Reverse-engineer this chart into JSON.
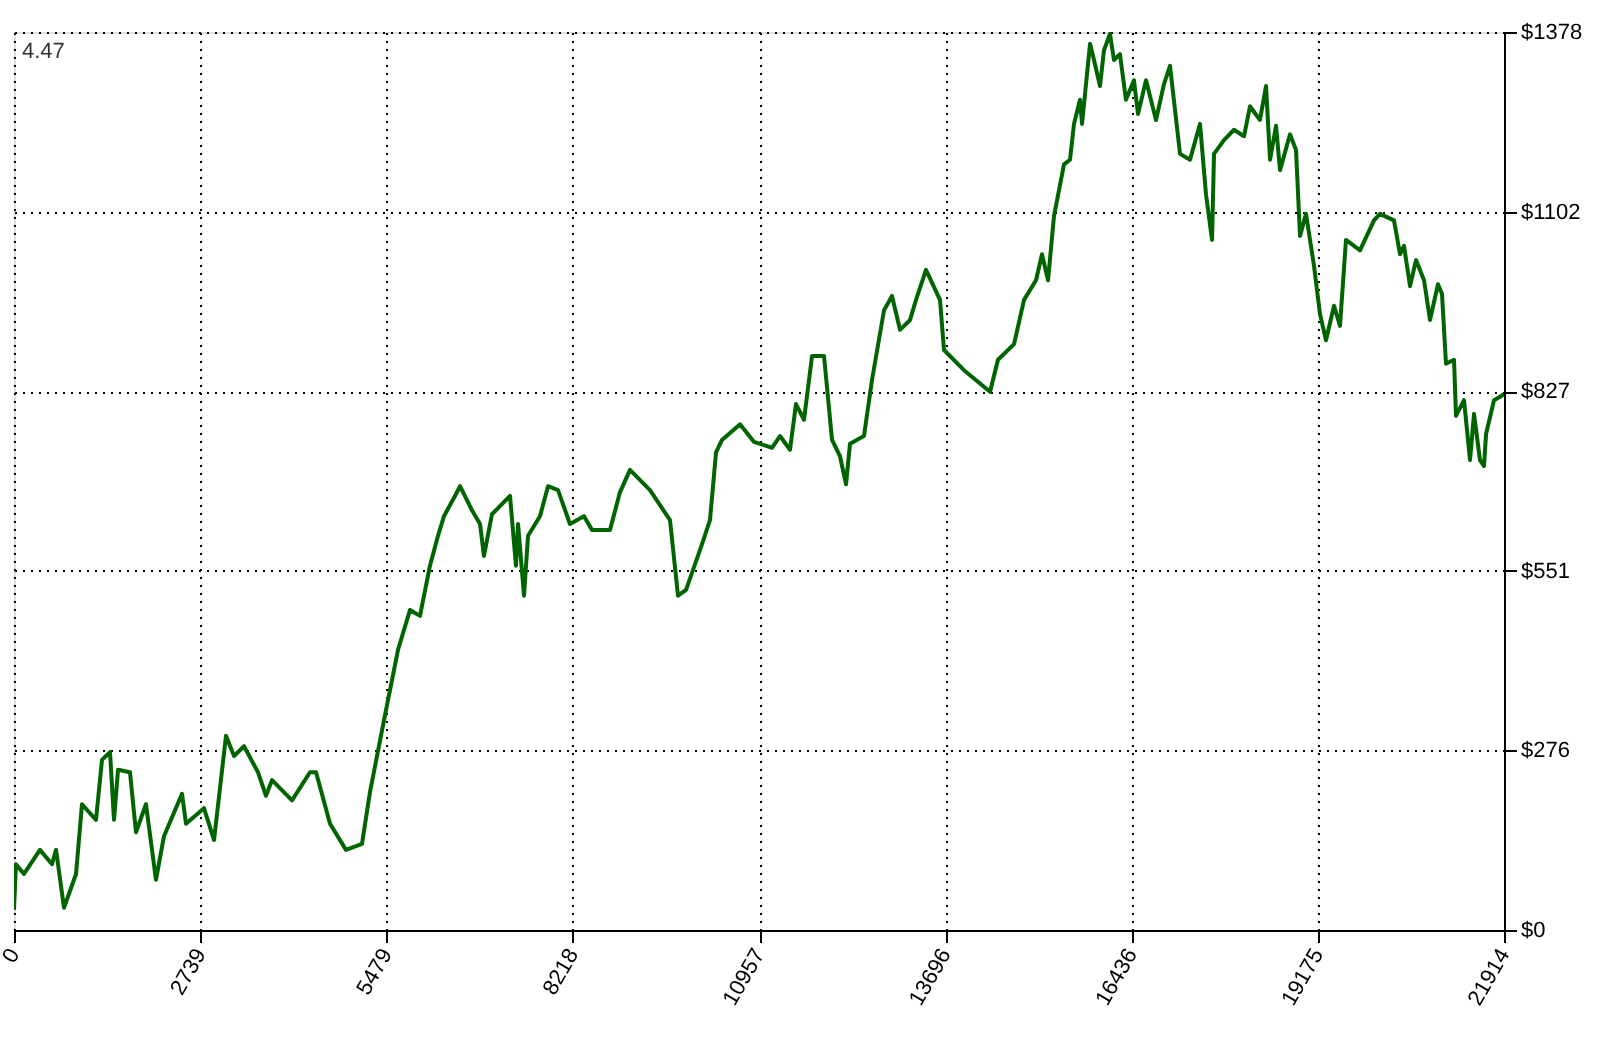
{
  "chart_data": {
    "type": "line",
    "x": [
      0,
      29,
      147,
      382,
      559,
      618,
      735,
      912,
      1000,
      1206,
      1294,
      1412,
      1471,
      1530,
      1706,
      1794,
      1941,
      2088,
      2206,
      2471,
      2530,
      2794,
      2942,
      3118,
      3236,
      3383,
      3589,
      3706,
      3795,
      4089,
      4353,
      4442,
      4648,
      4883,
      5118,
      5236,
      5442,
      5648,
      5824,
      5971,
      6118,
      6236,
      6324,
      6501,
      6560,
      6736,
      6854,
      6912,
      7030,
      7295,
      7383,
      7413,
      7501,
      7560,
      7736,
      7854,
      8001,
      8177,
      8383,
      8501,
      8766,
      8913,
      9060,
      9354,
      9648,
      9766,
      9884,
      10119,
      10236,
      10325,
      10413,
      10678,
      10884,
      11148,
      11266,
      11413,
      11501,
      11619,
      11737,
      11913,
      12031,
      12148,
      12237,
      12295,
      12501,
      12619,
      12796,
      12913,
      13031,
      13178,
      13266,
      13413,
      13619,
      13678,
      13972,
      14355,
      14472,
      14708,
      14855,
      15031,
      15119,
      15208,
      15296,
      15443,
      15531,
      15590,
      15678,
      15708,
      15826,
      15884,
      15972,
      16031,
      16119,
      16178,
      16266,
      16354,
      16472,
      16531,
      16649,
      16796,
      16913,
      17002,
      17149,
      17296,
      17443,
      17531,
      17620,
      17649,
      17796,
      17943,
      18090,
      18178,
      18325,
      18414,
      18473,
      18561,
      18620,
      18767,
      18855,
      18914,
      19002,
      19120,
      19208,
      19296,
      19414,
      19502,
      19590,
      19796,
      20002,
      20090,
      20296,
      20385,
      20443,
      20532,
      20620,
      20738,
      20826,
      20943,
      21002,
      21061,
      21179,
      21208,
      21326,
      21414,
      21473,
      21561,
      21620,
      21650,
      21767,
      21914
    ],
    "series": [
      {
        "color": "#006400",
        "values": [
          31,
          101,
          86,
          123,
          101,
          123,
          34,
          86,
          193,
          169,
          261,
          273,
          169,
          246,
          242,
          150,
          193,
          77,
          144,
          209,
          163,
          187,
          138,
          298,
          267,
          282,
          242,
          206,
          230,
          199,
          242,
          242,
          163,
          123,
          132,
          212,
          322,
          430,
          491,
          482,
          559,
          605,
          635,
          669,
          681,
          644,
          623,
          574,
          638,
          666,
          559,
          623,
          513,
          605,
          635,
          681,
          675,
          623,
          635,
          614,
          614,
          672,
          706,
          675,
          629,
          513,
          522,
          592,
          629,
          733,
          752,
          776,
          749,
          740,
          758,
          737,
          807,
          783,
          881,
          881,
          752,
          727,
          684,
          746,
          758,
          844,
          951,
          973,
          921,
          936,
          967,
          1013,
          967,
          890,
          859,
          826,
          875,
          899,
          967,
          997,
          1037,
          997,
          1096,
          1175,
          1182,
          1237,
          1274,
          1237,
          1360,
          1335,
          1295,
          1350,
          1375,
          1335,
          1344,
          1274,
          1304,
          1252,
          1304,
          1243,
          1298,
          1326,
          1191,
          1182,
          1237,
          1129,
          1059,
          1191,
          1212,
          1228,
          1218,
          1264,
          1243,
          1295,
          1182,
          1234,
          1166,
          1221,
          1197,
          1065,
          1099,
          1019,
          945,
          905,
          958,
          927,
          1059,
          1043,
          1089,
          1099,
          1089,
          1037,
          1050,
          988,
          1028,
          997,
          936,
          991,
          976,
          869,
          875,
          789,
          813,
          721,
          792,
          721,
          712,
          761,
          813,
          822
        ]
      }
    ],
    "xlim": [
      0,
      21914
    ],
    "xticks": [
      0,
      2739,
      5479,
      8218,
      10957,
      13696,
      16436,
      19175,
      21914
    ],
    "ylim": [
      0,
      1378
    ],
    "yticks": [
      {
        "value": 0,
        "label": "$0"
      },
      {
        "value": 276,
        "label": "$276"
      },
      {
        "value": 551,
        "label": "$551"
      },
      {
        "value": 827,
        "label": "$827"
      },
      {
        "value": 1102,
        "label": "$1102"
      },
      {
        "value": 1378,
        "label": "$1378"
      }
    ],
    "grid": true,
    "line_style": "solid",
    "annotations": [
      "4.47"
    ]
  }
}
